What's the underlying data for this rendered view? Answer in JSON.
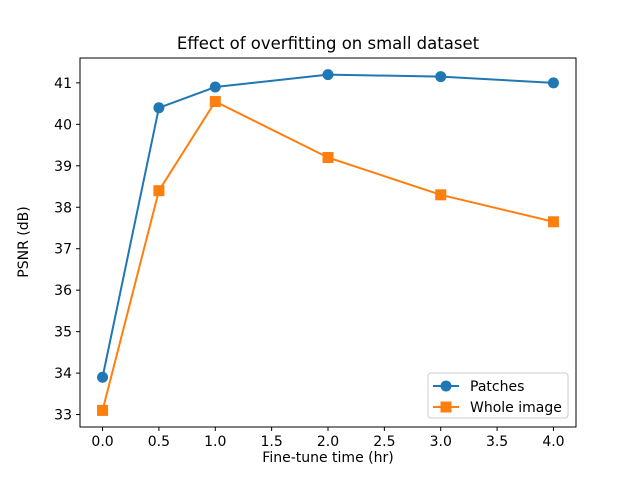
{
  "chart_data": {
    "type": "line",
    "title": "Effect of overfitting on small dataset",
    "xlabel": "Fine-tune time (hr)",
    "ylabel": "PSNR (dB)",
    "x": [
      0.0,
      0.5,
      1.0,
      2.0,
      3.0,
      4.0
    ],
    "series": [
      {
        "name": "Patches",
        "marker": "circle",
        "color": "#1f77b4",
        "values": [
          33.9,
          40.4,
          40.9,
          41.2,
          41.15,
          41.0
        ]
      },
      {
        "name": "Whole image",
        "marker": "square",
        "color": "#ff7f0e",
        "values": [
          33.1,
          38.4,
          40.55,
          39.2,
          38.3,
          37.65
        ]
      }
    ],
    "xlim": [
      -0.2,
      4.2
    ],
    "ylim": [
      32.7,
      41.6
    ],
    "xticks": [
      0.0,
      0.5,
      1.0,
      1.5,
      2.0,
      2.5,
      3.0,
      3.5,
      4.0
    ],
    "xtick_labels": [
      "0.0",
      "0.5",
      "1.0",
      "1.5",
      "2.0",
      "2.5",
      "3.0",
      "3.5",
      "4.0"
    ],
    "yticks": [
      33,
      34,
      35,
      36,
      37,
      38,
      39,
      40,
      41
    ],
    "ytick_labels": [
      "33",
      "34",
      "35",
      "36",
      "37",
      "38",
      "39",
      "40",
      "41"
    ],
    "legend_position": "lower right",
    "grid": false,
    "colors": {
      "spine": "#000000",
      "legend_border": "#cccccc",
      "background": "#ffffff"
    }
  }
}
